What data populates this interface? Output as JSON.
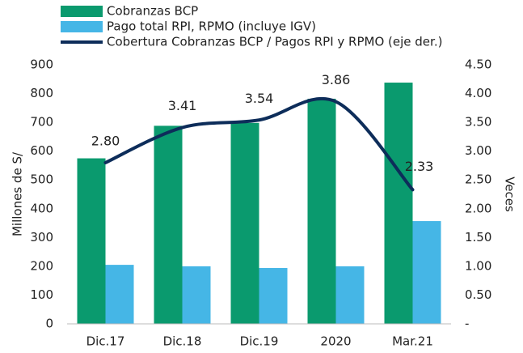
{
  "chart_data": {
    "type": "bar_line",
    "categories": [
      "Dic.17",
      "Dic.18",
      "Dic.19",
      "2020",
      "Mar.21"
    ],
    "series": [
      {
        "name": "Cobranzas BCP",
        "color": "#0a9a6e",
        "type": "bar",
        "values": [
          575,
          688,
          698,
          782,
          838
        ]
      },
      {
        "name": "Pago total RPI, RPMO (incluye IGV)",
        "color": "#45b6e6",
        "type": "bar",
        "values": [
          205,
          200,
          194,
          200,
          357
        ]
      },
      {
        "name": "Cobertura Cobranzas BCP / Pagos RPI y RPMO (eje der.)",
        "color": "#0d2d5a",
        "type": "line",
        "axis": "y2",
        "values": [
          2.8,
          3.41,
          3.54,
          3.86,
          2.33
        ],
        "value_labels": [
          "2.80",
          "3.41",
          "3.54",
          "3.86",
          "2.33"
        ]
      }
    ],
    "ylabel": "Millones de S/",
    "y2label": "Veces",
    "ylim": [
      0,
      900
    ],
    "yticks": [
      0,
      100,
      200,
      300,
      400,
      500,
      600,
      700,
      800,
      900
    ],
    "y2lim": [
      0,
      4.5
    ],
    "y2ticks": [
      {
        "value": 0,
        "label": "-"
      },
      {
        "value": 0.5,
        "label": "0.50"
      },
      {
        "value": 1,
        "label": "1.00"
      },
      {
        "value": 1.5,
        "label": "1.50"
      },
      {
        "value": 2,
        "label": "2.00"
      },
      {
        "value": 2.5,
        "label": "2.50"
      },
      {
        "value": 3,
        "label": "3.00"
      },
      {
        "value": 3.5,
        "label": "3.50"
      },
      {
        "value": 4,
        "label": "4.00"
      },
      {
        "value": 4.5,
        "label": "4.50"
      }
    ],
    "legend": "top"
  }
}
